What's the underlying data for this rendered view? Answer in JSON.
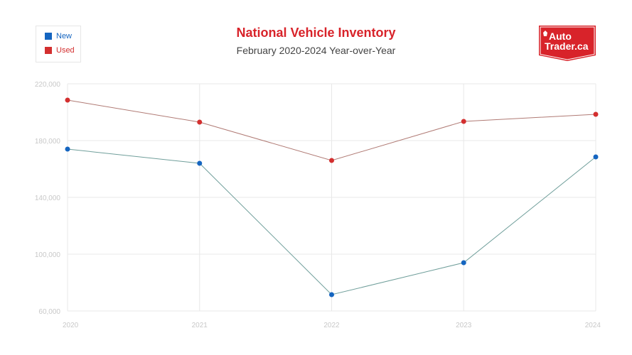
{
  "chart_data": {
    "type": "line",
    "title": "National Vehicle Inventory",
    "subtitle": "February 2020-2024 Year-over-Year",
    "categories": [
      "2020",
      "2021",
      "2022",
      "2023",
      "2024"
    ],
    "series": [
      {
        "name": "New",
        "color": "#1565c0",
        "line_color": "#6f9e9a",
        "values": [
          174000,
          164000,
          71500,
          94000,
          168500
        ]
      },
      {
        "name": "Used",
        "color": "#d32f2f",
        "line_color": "#b07a74",
        "values": [
          208500,
          193000,
          166000,
          193500,
          198500
        ]
      }
    ],
    "ylim": [
      60000,
      220000
    ],
    "yticks": [
      "60,000",
      "100,000",
      "140,000",
      "180,000",
      "220,000"
    ],
    "ytick_values": [
      60000,
      100000,
      140000,
      180000,
      220000
    ],
    "grid": true,
    "legend": "top-left"
  },
  "logo": {
    "text_line1": "Auto",
    "text_line2": "Trader.ca",
    "color": "#d8232a"
  }
}
